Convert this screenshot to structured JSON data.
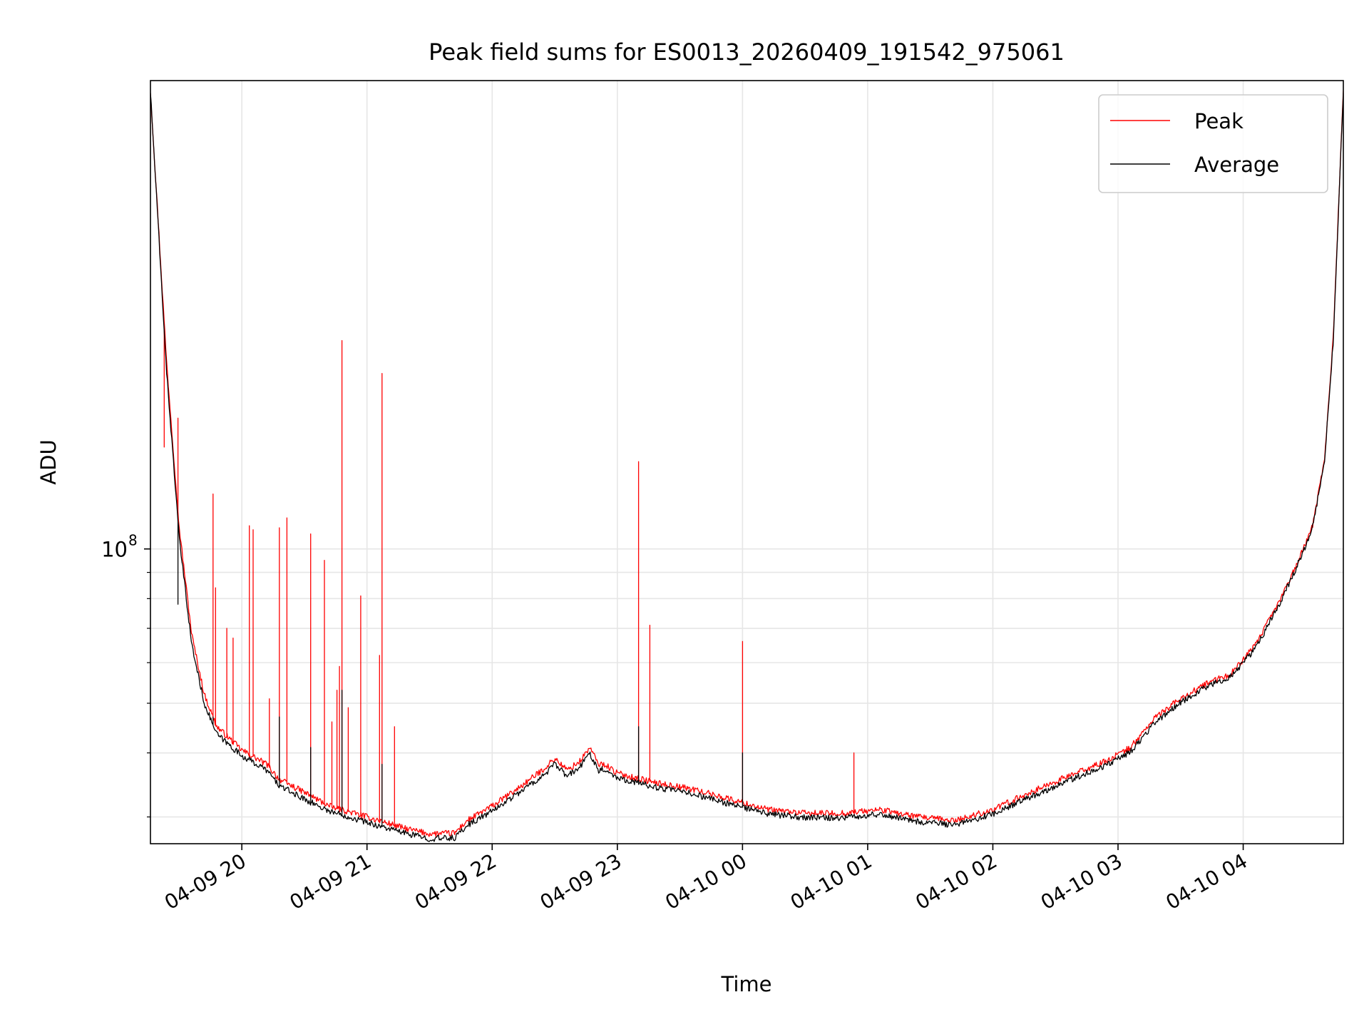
{
  "chart_data": {
    "type": "line",
    "title": "Peak field sums for ES0013_20260409_191542_975061",
    "xlabel": "Time",
    "ylabel": "ADU",
    "y_scale": "log",
    "ylim": [
      26600000,
      820000000
    ],
    "y_major_ticks": [
      {
        "value": 100000000,
        "base": "10",
        "exp": "8"
      }
    ],
    "y_minor_ticks": [
      30000000,
      40000000,
      50000000,
      60000000,
      70000000,
      80000000,
      90000000
    ],
    "xlim_hours": [
      19.27,
      28.8
    ],
    "x_ticks": [
      {
        "hour": 20,
        "label": "04-09 20"
      },
      {
        "hour": 21,
        "label": "04-09 21"
      },
      {
        "hour": 22,
        "label": "04-09 22"
      },
      {
        "hour": 23,
        "label": "04-09 23"
      },
      {
        "hour": 24,
        "label": "04-10 00"
      },
      {
        "hour": 25,
        "label": "04-10 01"
      },
      {
        "hour": 26,
        "label": "04-10 02"
      },
      {
        "hour": 27,
        "label": "04-10 03"
      },
      {
        "hour": 28,
        "label": "04-10 04"
      }
    ],
    "grid": true,
    "legend_position": "top-right",
    "series": [
      {
        "name": "Peak",
        "color": "#ff0000",
        "baseline": [
          [
            19.27,
            780000000
          ],
          [
            19.4,
            230000000
          ],
          [
            19.5,
            110000000
          ],
          [
            19.6,
            68000000
          ],
          [
            19.7,
            52000000
          ],
          [
            19.8,
            45000000
          ],
          [
            20.0,
            40500000
          ],
          [
            20.2,
            38000000
          ],
          [
            20.3,
            35500000
          ],
          [
            20.5,
            33500000
          ],
          [
            20.7,
            31500000
          ],
          [
            20.9,
            30500000
          ],
          [
            21.1,
            29500000
          ],
          [
            21.3,
            28500000
          ],
          [
            21.5,
            27800000
          ],
          [
            21.7,
            27900000
          ],
          [
            21.8,
            29500000
          ],
          [
            22.0,
            31500000
          ],
          [
            22.2,
            34000000
          ],
          [
            22.4,
            37000000
          ],
          [
            22.5,
            39000000
          ],
          [
            22.6,
            37000000
          ],
          [
            22.7,
            38500000
          ],
          [
            22.78,
            41000000
          ],
          [
            22.85,
            38000000
          ],
          [
            22.9,
            38000000
          ],
          [
            23.0,
            36500000
          ],
          [
            23.3,
            35000000
          ],
          [
            23.6,
            34000000
          ],
          [
            23.9,
            32500000
          ],
          [
            24.2,
            31000000
          ],
          [
            24.5,
            30500000
          ],
          [
            24.8,
            30500000
          ],
          [
            25.1,
            31000000
          ],
          [
            25.4,
            30000000
          ],
          [
            25.7,
            29500000
          ],
          [
            26.0,
            31000000
          ],
          [
            26.3,
            33500000
          ],
          [
            26.6,
            36000000
          ],
          [
            26.9,
            38500000
          ],
          [
            27.1,
            41000000
          ],
          [
            27.3,
            47000000
          ],
          [
            27.5,
            51000000
          ],
          [
            27.7,
            54500000
          ],
          [
            27.9,
            57000000
          ],
          [
            28.1,
            65000000
          ],
          [
            28.3,
            80000000
          ],
          [
            28.45,
            96000000
          ],
          [
            28.55,
            110000000
          ],
          [
            28.65,
            150000000
          ],
          [
            28.72,
            260000000
          ],
          [
            28.8,
            790000000
          ]
        ],
        "spikes": [
          [
            19.38,
            158000000
          ],
          [
            19.49,
            180000000
          ],
          [
            19.77,
            128000000
          ],
          [
            19.79,
            84000000
          ],
          [
            19.88,
            70000000
          ],
          [
            19.93,
            67000000
          ],
          [
            20.06,
            111000000
          ],
          [
            20.09,
            109000000
          ],
          [
            20.22,
            51000000
          ],
          [
            20.3,
            110000000
          ],
          [
            20.36,
            115000000
          ],
          [
            20.55,
            107000000
          ],
          [
            20.66,
            95000000
          ],
          [
            20.72,
            46000000
          ],
          [
            20.76,
            53000000
          ],
          [
            20.78,
            59000000
          ],
          [
            20.8,
            255000000
          ],
          [
            20.85,
            49000000
          ],
          [
            20.95,
            81000000
          ],
          [
            21.1,
            62000000
          ],
          [
            21.12,
            220000000
          ],
          [
            21.22,
            45000000
          ],
          [
            23.17,
            148000000
          ],
          [
            23.26,
            71000000
          ],
          [
            24.0,
            66000000
          ],
          [
            24.89,
            40000000
          ]
        ]
      },
      {
        "name": "Average",
        "color": "#000000",
        "baseline": [
          [
            19.27,
            780000000
          ],
          [
            19.4,
            220000000
          ],
          [
            19.5,
            105000000
          ],
          [
            19.6,
            65000000
          ],
          [
            19.7,
            50000000
          ],
          [
            19.8,
            43500000
          ],
          [
            20.0,
            39500000
          ],
          [
            20.2,
            37000000
          ],
          [
            20.3,
            34500000
          ],
          [
            20.5,
            32500000
          ],
          [
            20.7,
            30800000
          ],
          [
            20.9,
            29800000
          ],
          [
            21.1,
            28800000
          ],
          [
            21.3,
            27900000
          ],
          [
            21.5,
            27200000
          ],
          [
            21.7,
            27300000
          ],
          [
            21.8,
            28900000
          ],
          [
            22.0,
            30800000
          ],
          [
            22.2,
            33300000
          ],
          [
            22.4,
            36000000
          ],
          [
            22.5,
            38000000
          ],
          [
            22.6,
            36000000
          ],
          [
            22.7,
            37500000
          ],
          [
            22.78,
            40000000
          ],
          [
            22.85,
            37000000
          ],
          [
            22.9,
            37200000
          ],
          [
            23.0,
            35800000
          ],
          [
            23.3,
            34300000
          ],
          [
            23.6,
            33300000
          ],
          [
            23.9,
            31800000
          ],
          [
            24.2,
            30400000
          ],
          [
            24.5,
            29900000
          ],
          [
            24.8,
            29900000
          ],
          [
            25.1,
            30400000
          ],
          [
            25.4,
            29400000
          ],
          [
            25.7,
            28900000
          ],
          [
            26.0,
            30400000
          ],
          [
            26.3,
            32800000
          ],
          [
            26.6,
            35300000
          ],
          [
            26.9,
            37800000
          ],
          [
            27.1,
            40200000
          ],
          [
            27.3,
            46000000
          ],
          [
            27.5,
            50200000
          ],
          [
            27.7,
            53800000
          ],
          [
            27.9,
            56300000
          ],
          [
            28.1,
            64000000
          ],
          [
            28.3,
            79000000
          ],
          [
            28.45,
            95000000
          ],
          [
            28.55,
            109000000
          ],
          [
            28.65,
            148000000
          ],
          [
            28.72,
            255000000
          ],
          [
            28.8,
            780000000
          ]
        ],
        "spikes": [
          [
            19.49,
            78000000
          ],
          [
            19.77,
            47000000
          ],
          [
            20.3,
            47000000
          ],
          [
            20.55,
            41000000
          ],
          [
            20.8,
            53000000
          ],
          [
            21.12,
            38000000
          ],
          [
            23.17,
            45000000
          ],
          [
            24.0,
            40000000
          ]
        ]
      }
    ]
  }
}
